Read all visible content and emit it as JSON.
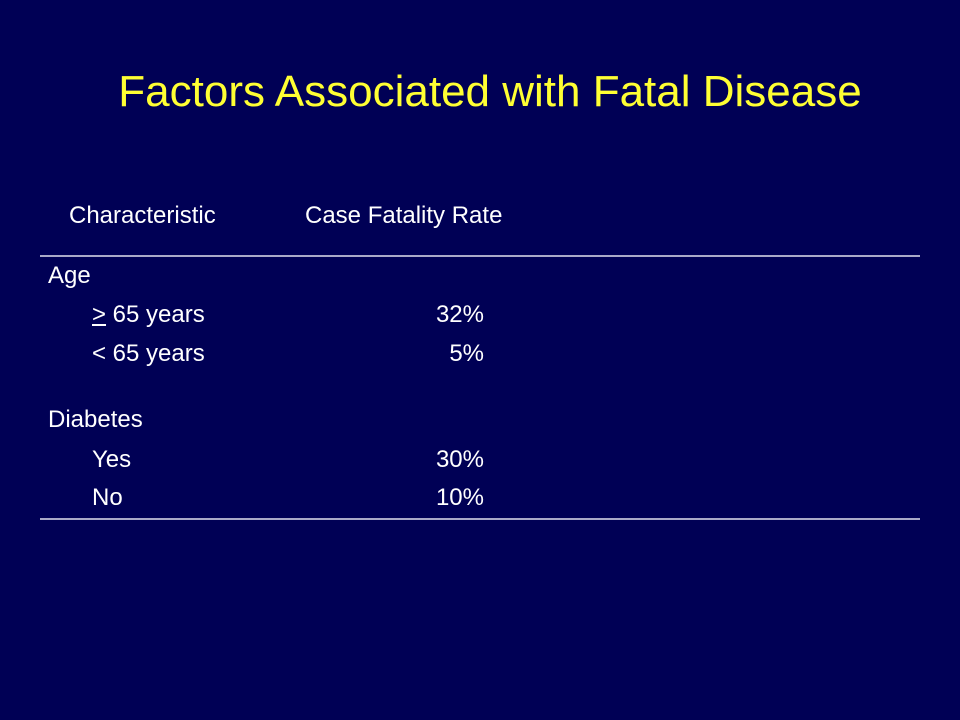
{
  "slide": {
    "title": "Factors Associated with Fatal Disease"
  },
  "table": {
    "headers": {
      "characteristic": "Characteristic",
      "rate": "Case Fatality Rate"
    },
    "groups": [
      {
        "label": "Age",
        "rows": [
          {
            "sign": ">",
            "label": " 65 years",
            "value": "32%"
          },
          {
            "label": "< 65 years",
            "value": "5%"
          }
        ]
      },
      {
        "label": "Diabetes",
        "rows": [
          {
            "label": "Yes",
            "value": "30%"
          },
          {
            "label": "No",
            "value": "10%"
          }
        ]
      }
    ]
  },
  "colors": {
    "background": "#000055",
    "title": "#ffff33",
    "text": "#ffffff",
    "rule": "#a9a9c8"
  }
}
